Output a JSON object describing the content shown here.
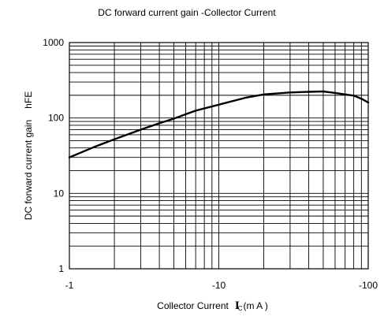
{
  "chart_data": {
    "type": "line",
    "title": "DC forward current gain -Collector Current",
    "xlabel": "Collector Current",
    "xlabel_symbol": "I",
    "xlabel_symbol_sub": "C",
    "xlabel_unit": "(m A )",
    "ylabel": "DC forward current gain",
    "ylabel_symbol": "hFE",
    "x_scale": "log",
    "y_scale": "log",
    "xlim": [
      -1,
      -100
    ],
    "ylim": [
      1,
      1000
    ],
    "x_ticks": [
      {
        "value": -1,
        "label": "-1"
      },
      {
        "value": -10,
        "label": "-10"
      },
      {
        "value": -100,
        "label": "-100"
      }
    ],
    "y_ticks": [
      {
        "value": 1,
        "label": "1"
      },
      {
        "value": 10,
        "label": "10"
      },
      {
        "value": 100,
        "label": "100"
      },
      {
        "value": 1000,
        "label": "1000"
      }
    ],
    "grid": true,
    "series": [
      {
        "color": "#000000",
        "x": [
          -1,
          -1.5,
          -2,
          -3,
          -4,
          -5,
          -7,
          -10,
          -15,
          -20,
          -30,
          -40,
          -50,
          -60,
          -70,
          -80,
          -90,
          -100
        ],
        "y": [
          30,
          42,
          52,
          70,
          85,
          98,
          125,
          150,
          185,
          205,
          218,
          222,
          225,
          215,
          205,
          198,
          180,
          160
        ]
      }
    ]
  }
}
